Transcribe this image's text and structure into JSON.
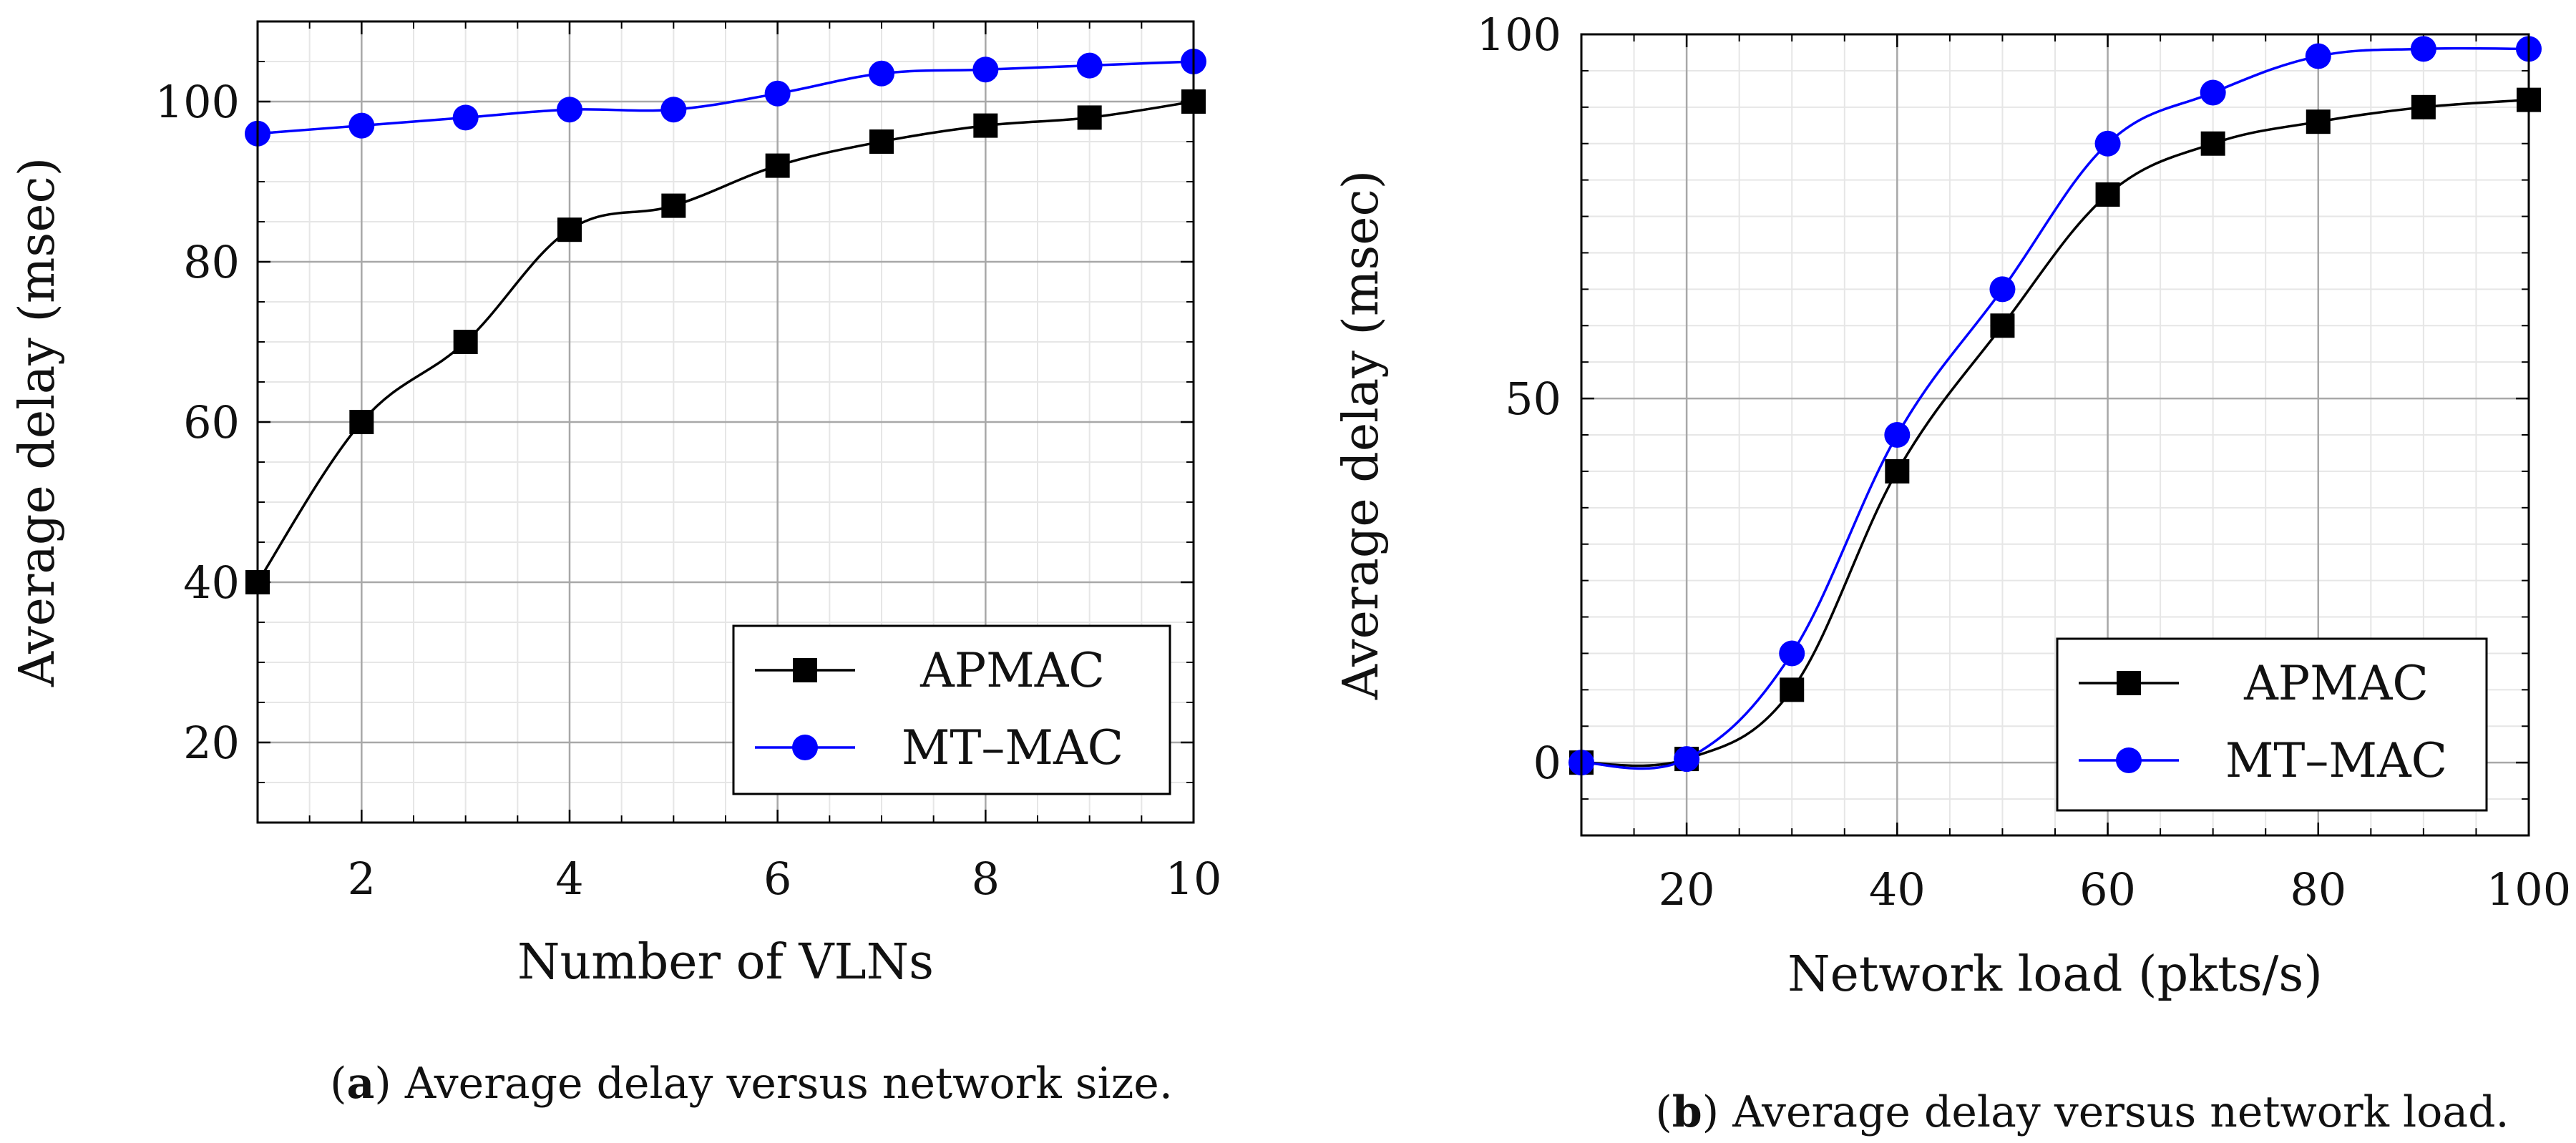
{
  "chart_data": [
    {
      "type": "line",
      "caption_tag": "a",
      "caption_text": "Average delay versus network size.",
      "xlabel": "Number of VLNs",
      "ylabel": "Average delay (msec)",
      "xlim": [
        1,
        10
      ],
      "ylim": [
        10,
        110
      ],
      "xticks": [
        2,
        4,
        6,
        8,
        10
      ],
      "yticks": [
        20,
        40,
        60,
        80,
        100
      ],
      "x_minor_step": 0.5,
      "y_minor_step": 5,
      "grid": true,
      "legend_position": "bottom-right",
      "x": [
        1,
        2,
        3,
        4,
        5,
        6,
        7,
        8,
        9,
        10
      ],
      "series": [
        {
          "name": "APMAC",
          "color": "#000000",
          "marker": "square",
          "values": [
            40,
            60,
            70,
            84,
            87,
            92,
            95,
            97,
            98,
            100
          ]
        },
        {
          "name": "MT–MAC",
          "color": "#0000ff",
          "marker": "circle",
          "values": [
            96,
            97,
            98,
            99,
            99,
            101,
            103.5,
            104,
            104.5,
            105
          ]
        }
      ]
    },
    {
      "type": "line",
      "caption_tag": "b",
      "caption_text": "Average delay versus network load.",
      "xlabel": "Network load (pkts/s)",
      "ylabel": "Average delay (msec)",
      "xlim": [
        10,
        100
      ],
      "ylim": [
        -10,
        100
      ],
      "xticks": [
        20,
        40,
        60,
        80,
        100
      ],
      "yticks": [
        0,
        50,
        100
      ],
      "x_minor_step": 5,
      "y_minor_step": 5,
      "grid": true,
      "legend_position": "bottom-right",
      "x": [
        10,
        20,
        30,
        40,
        50,
        60,
        70,
        80,
        90,
        100
      ],
      "series": [
        {
          "name": "APMAC",
          "color": "#000000",
          "marker": "square",
          "values": [
            0,
            0.5,
            10,
            40,
            60,
            78,
            85,
            88,
            90,
            91
          ]
        },
        {
          "name": "MT–MAC",
          "color": "#0000ff",
          "marker": "circle",
          "values": [
            0,
            0.5,
            15,
            45,
            65,
            85,
            92,
            97,
            98,
            98
          ]
        }
      ]
    }
  ]
}
